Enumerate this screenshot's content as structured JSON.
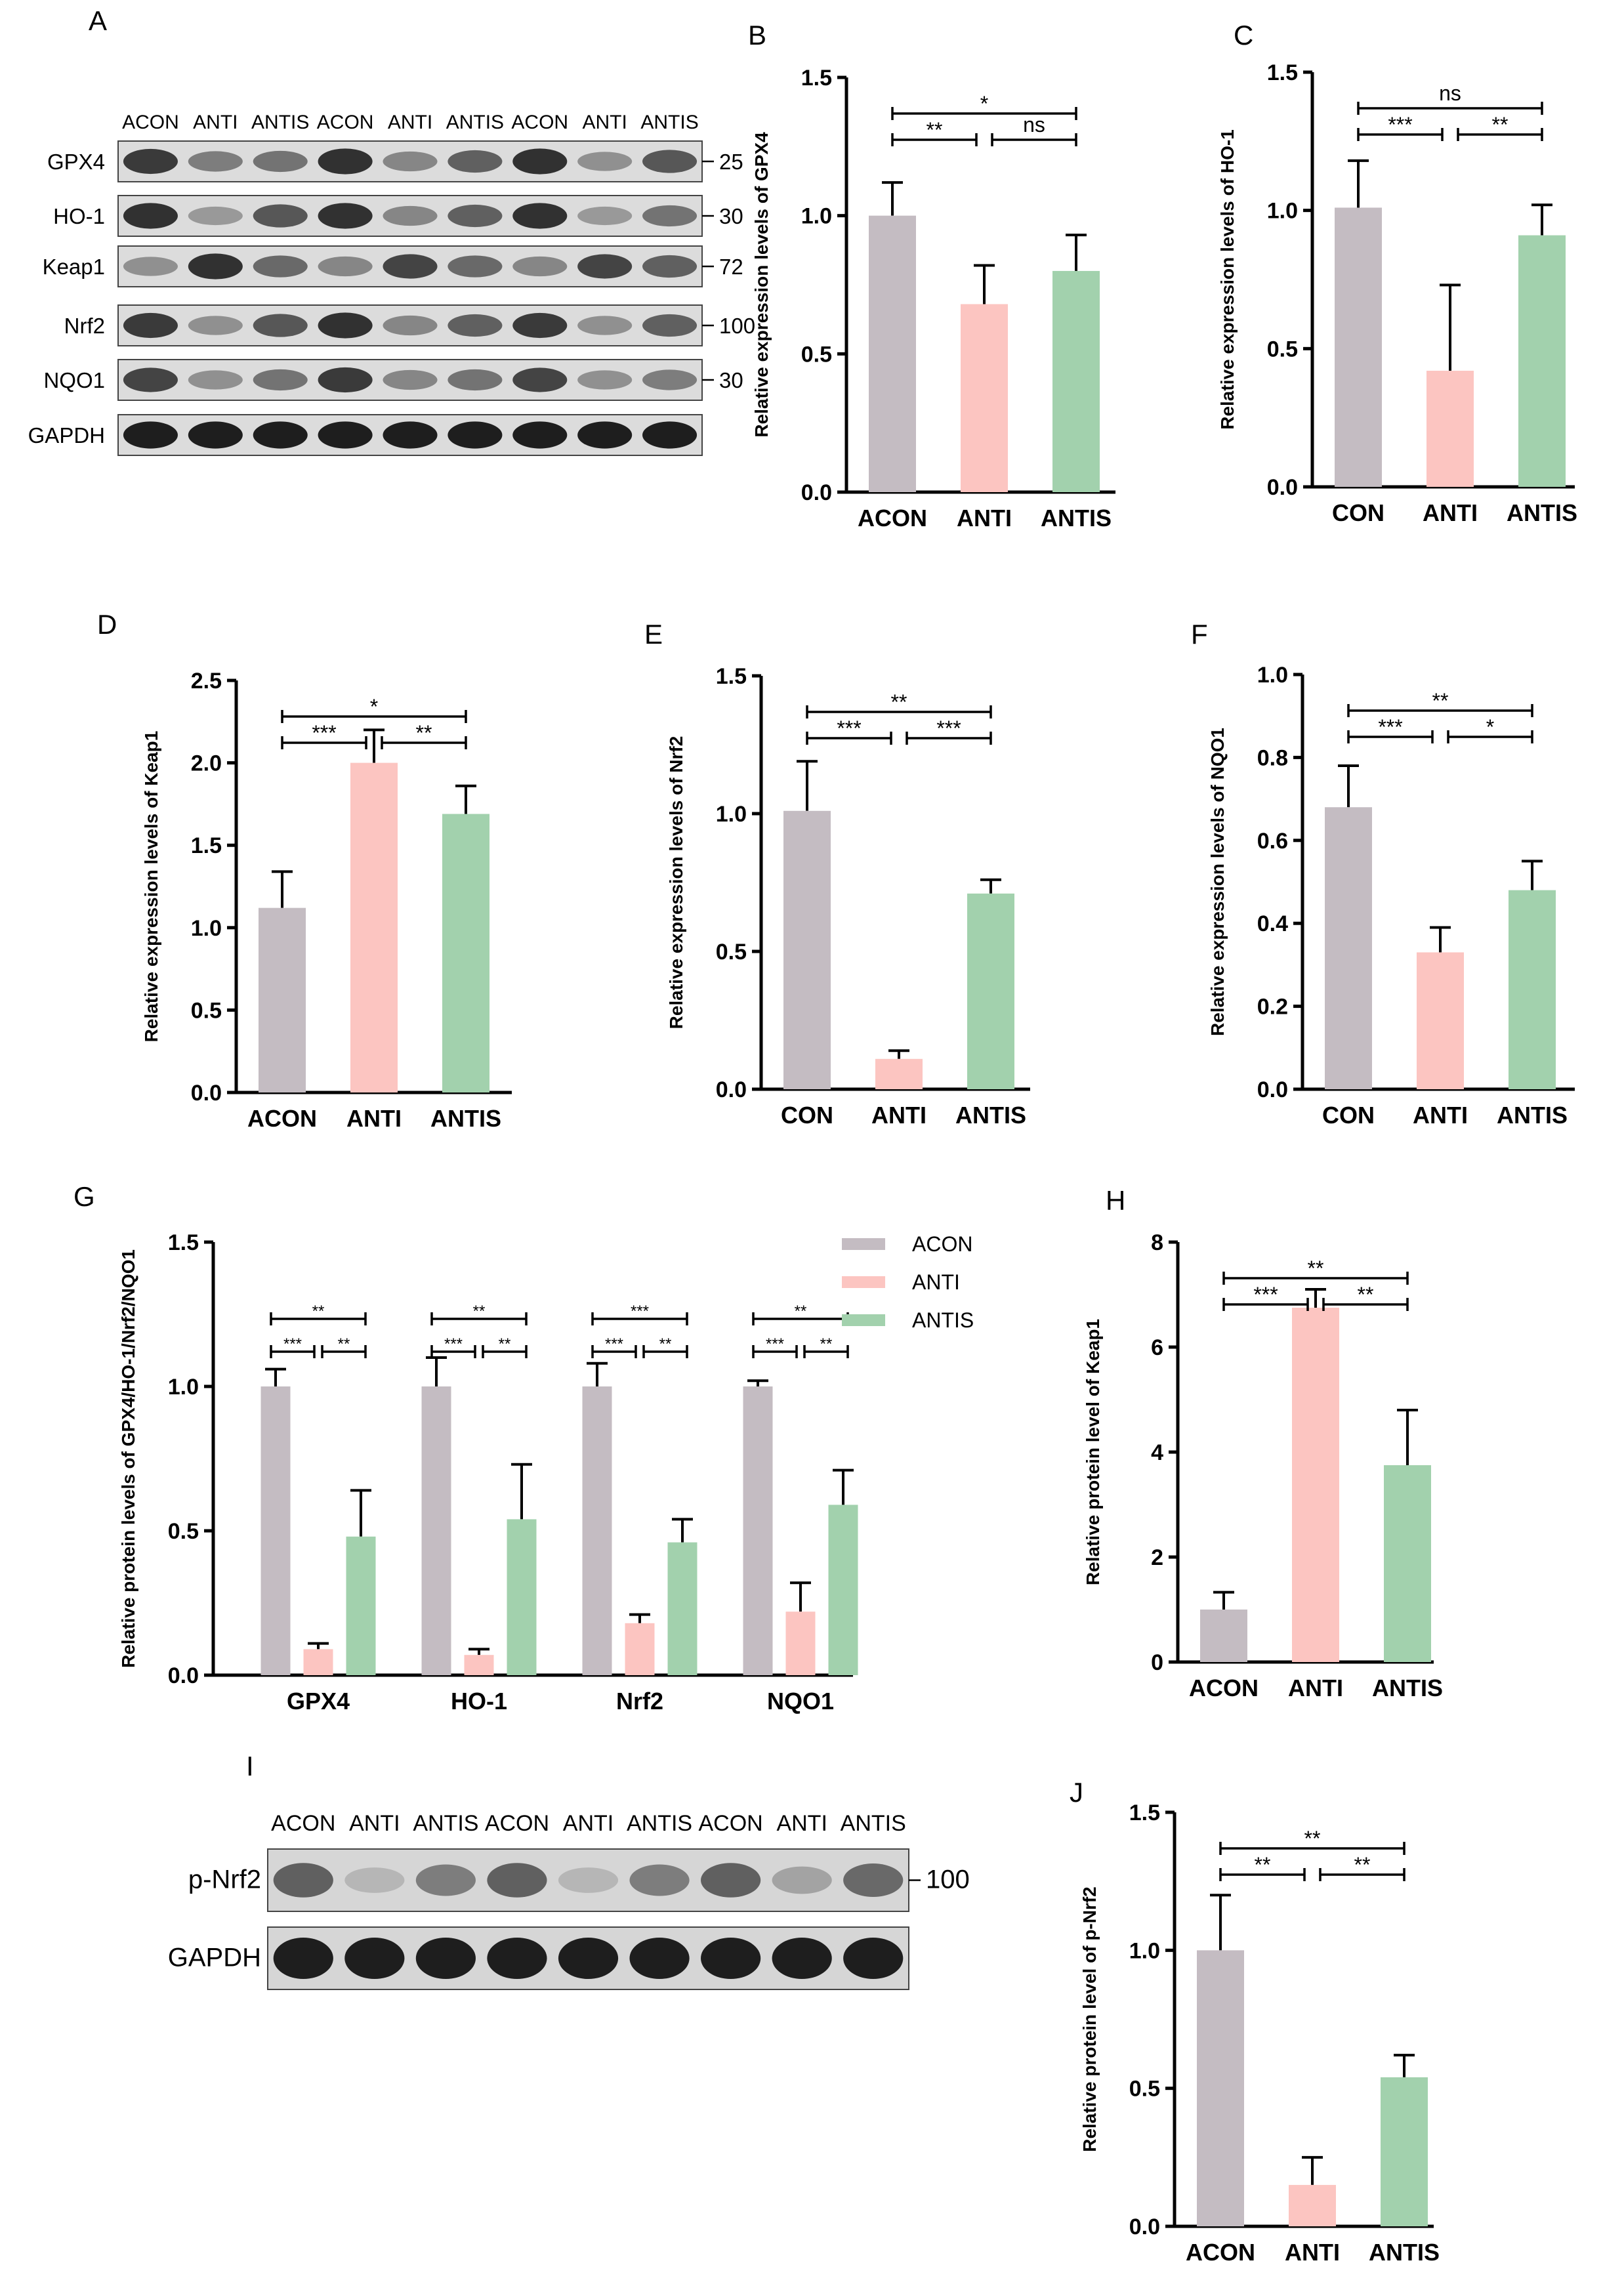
{
  "blots": {
    "A": {
      "letter": "A",
      "lanes": [
        "ACON",
        "ANTI",
        "ANTIS",
        "ACON",
        "ANTI",
        "ANTIS",
        "ACON",
        "ANTI",
        "ANTIS"
      ],
      "rows": [
        {
          "name": "GPX4",
          "mw": "25",
          "intensity": [
            0.8,
            0.45,
            0.5,
            0.85,
            0.4,
            0.6,
            0.85,
            0.35,
            0.65
          ]
        },
        {
          "name": "HO-1",
          "mw": "30",
          "intensity": [
            0.85,
            0.3,
            0.65,
            0.85,
            0.4,
            0.6,
            0.85,
            0.3,
            0.5
          ]
        },
        {
          "name": "Keap1",
          "mw": "72",
          "intensity": [
            0.35,
            0.85,
            0.55,
            0.4,
            0.75,
            0.55,
            0.4,
            0.75,
            0.6
          ]
        },
        {
          "name": "Nrf2",
          "mw": "100",
          "intensity": [
            0.8,
            0.35,
            0.65,
            0.85,
            0.4,
            0.6,
            0.8,
            0.35,
            0.6
          ]
        },
        {
          "name": "NQO1",
          "mw": "30",
          "intensity": [
            0.75,
            0.35,
            0.5,
            0.8,
            0.4,
            0.5,
            0.75,
            0.35,
            0.45
          ]
        },
        {
          "name": "GAPDH",
          "mw": "",
          "intensity": [
            0.95,
            0.95,
            0.95,
            0.95,
            0.95,
            0.95,
            0.95,
            0.95,
            0.95
          ]
        }
      ]
    },
    "I": {
      "letter": "I",
      "lanes": [
        "ACON",
        "ANTI",
        "ANTIS",
        "ACON",
        "ANTI",
        "ANTIS",
        "ACON",
        "ANTI",
        "ANTIS"
      ],
      "rows": [
        {
          "name": "p-Nrf2",
          "mw": "100",
          "intensity": [
            0.6,
            0.15,
            0.45,
            0.6,
            0.15,
            0.45,
            0.6,
            0.25,
            0.55
          ]
        },
        {
          "name": "GAPDH",
          "mw": "",
          "intensity": [
            0.95,
            0.95,
            0.95,
            0.95,
            0.95,
            0.95,
            0.95,
            0.95,
            0.95
          ]
        }
      ]
    }
  },
  "chart_data": [
    {
      "id": "B",
      "letter": "B",
      "type": "bar",
      "categories": [
        "ACON",
        "ANTI",
        "ANTIS"
      ],
      "values": [
        1.0,
        0.68,
        0.8
      ],
      "errors": [
        0.12,
        0.14,
        0.13
      ],
      "colors": [
        "#c4bcc2",
        "#fcc5c1",
        "#a2d1ad"
      ],
      "ylabel": "Relative expression levels of GPX4",
      "ylim": [
        0,
        1.5
      ],
      "ticks": [
        0.0,
        0.5,
        1.0,
        1.5
      ],
      "tick_decimals": 1,
      "sig": [
        {
          "from": 0,
          "to": 2,
          "level": 2,
          "label": "*"
        },
        {
          "from": 0,
          "to": 1,
          "level": 1,
          "label": "**"
        },
        {
          "from": 1,
          "to": 2,
          "level": 1,
          "label": "ns"
        }
      ]
    },
    {
      "id": "C",
      "letter": "C",
      "type": "bar",
      "categories": [
        "CON",
        "ANTI",
        "ANTIS"
      ],
      "values": [
        1.01,
        0.42,
        0.91
      ],
      "errors": [
        0.17,
        0.31,
        0.11
      ],
      "colors": [
        "#c4bcc2",
        "#fcc5c1",
        "#a2d1ad"
      ],
      "ylabel": "Relative expression levels of HO-1",
      "ylim": [
        0,
        1.5
      ],
      "ticks": [
        0.0,
        0.5,
        1.0,
        1.5
      ],
      "tick_decimals": 1,
      "sig": [
        {
          "from": 0,
          "to": 2,
          "level": 2,
          "label": "ns"
        },
        {
          "from": 0,
          "to": 1,
          "level": 1,
          "label": "***"
        },
        {
          "from": 1,
          "to": 2,
          "level": 1,
          "label": "**"
        }
      ]
    },
    {
      "id": "D",
      "letter": "D",
      "type": "bar",
      "categories": [
        "ACON",
        "ANTI",
        "ANTIS"
      ],
      "values": [
        1.12,
        2.0,
        1.69
      ],
      "errors": [
        0.22,
        0.2,
        0.17
      ],
      "colors": [
        "#c4bcc2",
        "#fcc5c1",
        "#a2d1ad"
      ],
      "ylabel": "Relative expression levels of Keap1",
      "ylim": [
        0,
        2.5
      ],
      "ticks": [
        0.0,
        0.5,
        1.0,
        1.5,
        2.0,
        2.5
      ],
      "tick_decimals": 1,
      "sig": [
        {
          "from": 0,
          "to": 2,
          "level": 2,
          "label": "*"
        },
        {
          "from": 0,
          "to": 1,
          "level": 1,
          "label": "***"
        },
        {
          "from": 1,
          "to": 2,
          "level": 1,
          "label": "**"
        }
      ]
    },
    {
      "id": "E",
      "letter": "E",
      "type": "bar",
      "categories": [
        "CON",
        "ANTI",
        "ANTIS"
      ],
      "values": [
        1.01,
        0.11,
        0.71
      ],
      "errors": [
        0.18,
        0.03,
        0.05
      ],
      "colors": [
        "#c4bcc2",
        "#fcc5c1",
        "#a2d1ad"
      ],
      "ylabel": "Relative expression levels of Nrf2",
      "ylim": [
        0,
        1.5
      ],
      "ticks": [
        0.0,
        0.5,
        1.0,
        1.5
      ],
      "tick_decimals": 1,
      "sig": [
        {
          "from": 0,
          "to": 2,
          "level": 2,
          "label": "**"
        },
        {
          "from": 0,
          "to": 1,
          "level": 1,
          "label": "***"
        },
        {
          "from": 1,
          "to": 2,
          "level": 1,
          "label": "***"
        }
      ]
    },
    {
      "id": "F",
      "letter": "F",
      "type": "bar",
      "categories": [
        "CON",
        "ANTI",
        "ANTIS"
      ],
      "values": [
        0.68,
        0.33,
        0.48
      ],
      "errors": [
        0.1,
        0.06,
        0.07
      ],
      "colors": [
        "#c4bcc2",
        "#fcc5c1",
        "#a2d1ad"
      ],
      "ylabel": "Relative expression levels of NQO1",
      "ylim": [
        0,
        1.0
      ],
      "ticks": [
        0.0,
        0.2,
        0.4,
        0.6,
        0.8,
        1.0
      ],
      "tick_decimals": 1,
      "sig": [
        {
          "from": 0,
          "to": 2,
          "level": 2,
          "label": "**"
        },
        {
          "from": 0,
          "to": 1,
          "level": 1,
          "label": "***"
        },
        {
          "from": 1,
          "to": 2,
          "level": 1,
          "label": "*"
        }
      ]
    },
    {
      "id": "G",
      "letter": "G",
      "type": "bar",
      "categories": [
        "GPX4",
        "HO-1",
        "Nrf2",
        "NQO1"
      ],
      "series": [
        {
          "name": "ACON",
          "color": "#c4bcc2",
          "values": [
            1.0,
            1.0,
            1.0,
            1.0
          ],
          "errors": [
            0.06,
            0.1,
            0.08,
            0.02
          ]
        },
        {
          "name": "ANTI",
          "color": "#fcc5c1",
          "values": [
            0.09,
            0.07,
            0.18,
            0.22
          ],
          "errors": [
            0.02,
            0.02,
            0.03,
            0.1
          ]
        },
        {
          "name": "ANTIS",
          "color": "#a2d1ad",
          "values": [
            0.48,
            0.54,
            0.46,
            0.59
          ],
          "errors": [
            0.16,
            0.19,
            0.08,
            0.12
          ]
        }
      ],
      "ylabel": "Relative protein levels of GPX4/HO-1/Nrf2/NQO1",
      "ylim": [
        0,
        1.5
      ],
      "ticks": [
        0.0,
        0.5,
        1.0,
        1.5
      ],
      "tick_decimals": 1,
      "legend": "top-right",
      "sig_groups": [
        {
          "top": "**",
          "left": "***",
          "right": "**"
        },
        {
          "top": "**",
          "left": "***",
          "right": "**"
        },
        {
          "top": "***",
          "left": "***",
          "right": "**"
        },
        {
          "top": "**",
          "left": "***",
          "right": "**"
        }
      ]
    },
    {
      "id": "H",
      "letter": "H",
      "type": "bar",
      "categories": [
        "ACON",
        "ANTI",
        "ANTIS"
      ],
      "values": [
        1.0,
        6.75,
        3.75
      ],
      "errors": [
        0.33,
        0.35,
        1.05
      ],
      "colors": [
        "#c4bcc2",
        "#fcc5c1",
        "#a2d1ad"
      ],
      "ylabel": "Relative protein level of Keap1",
      "ylim": [
        0,
        8
      ],
      "ticks": [
        0,
        2,
        4,
        6,
        8
      ],
      "tick_decimals": 0,
      "sig": [
        {
          "from": 0,
          "to": 2,
          "level": 2,
          "label": "**"
        },
        {
          "from": 0,
          "to": 1,
          "level": 1,
          "label": "***"
        },
        {
          "from": 1,
          "to": 2,
          "level": 1,
          "label": "**"
        }
      ]
    },
    {
      "id": "J",
      "letter": "J",
      "type": "bar",
      "categories": [
        "ACON",
        "ANTI",
        "ANTIS"
      ],
      "values": [
        1.0,
        0.15,
        0.54
      ],
      "errors": [
        0.2,
        0.1,
        0.08
      ],
      "colors": [
        "#c4bcc2",
        "#fcc5c1",
        "#a2d1ad"
      ],
      "ylabel": "Relative protein level of p-Nrf2",
      "ylim": [
        0,
        1.5
      ],
      "ticks": [
        0.0,
        0.5,
        1.0,
        1.5
      ],
      "tick_decimals": 1,
      "sig": [
        {
          "from": 0,
          "to": 2,
          "level": 2,
          "label": "**"
        },
        {
          "from": 0,
          "to": 1,
          "level": 1,
          "label": "**"
        },
        {
          "from": 1,
          "to": 2,
          "level": 1,
          "label": "**"
        }
      ]
    }
  ]
}
